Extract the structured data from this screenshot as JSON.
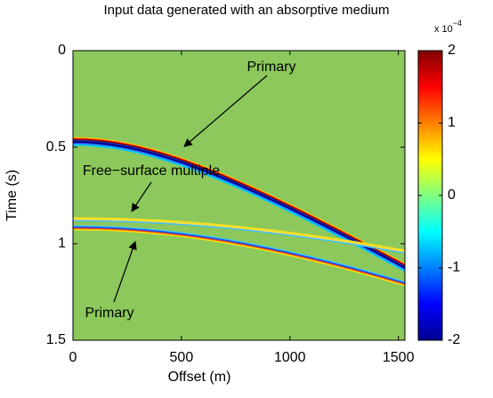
{
  "chart_data": {
    "type": "image",
    "title": "Input data generated with an absorptive medium",
    "x_label": "Offset (m)",
    "y_label": "Time (s)",
    "xlim": [
      0,
      1530
    ],
    "xticks": [
      0,
      500,
      1000,
      1500
    ],
    "ylim": [
      0,
      1.5
    ],
    "yticks": [
      0,
      0.5,
      1,
      1.5
    ],
    "y_reversed": true,
    "colorbar": {
      "lim": [
        -2,
        2
      ],
      "ticks": [
        2,
        1,
        0,
        -1,
        -2
      ],
      "scale_base": "x 10",
      "scale_exponent": "−4",
      "colormap": "jet"
    },
    "annotations": [
      {
        "text": "Primary"
      },
      {
        "text": "Free−surface multiple"
      },
      {
        "text": "Primary"
      }
    ]
  }
}
